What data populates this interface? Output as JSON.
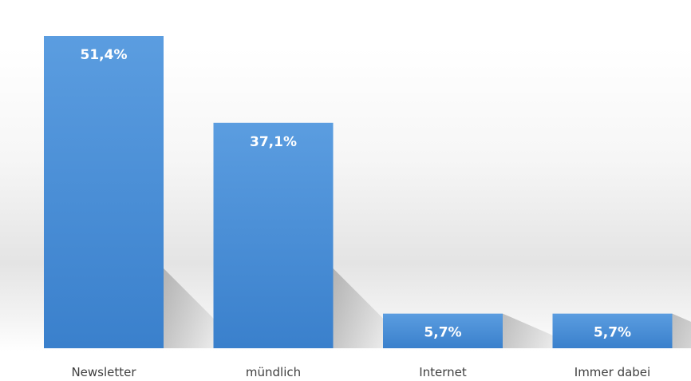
{
  "chart_data": {
    "type": "bar",
    "categories": [
      "Newsletter",
      "mündlich",
      "Internet",
      "Immer dabei"
    ],
    "values": [
      51.4,
      37.1,
      5.7,
      5.7
    ],
    "data_labels": [
      "51,4%",
      "37,1%",
      "5,7%",
      "5,7%"
    ],
    "title": "",
    "xlabel": "",
    "ylabel": "",
    "ylim": [
      0,
      51.4
    ],
    "grid": false,
    "legend": "none",
    "bar_color": "#4a90d9"
  }
}
